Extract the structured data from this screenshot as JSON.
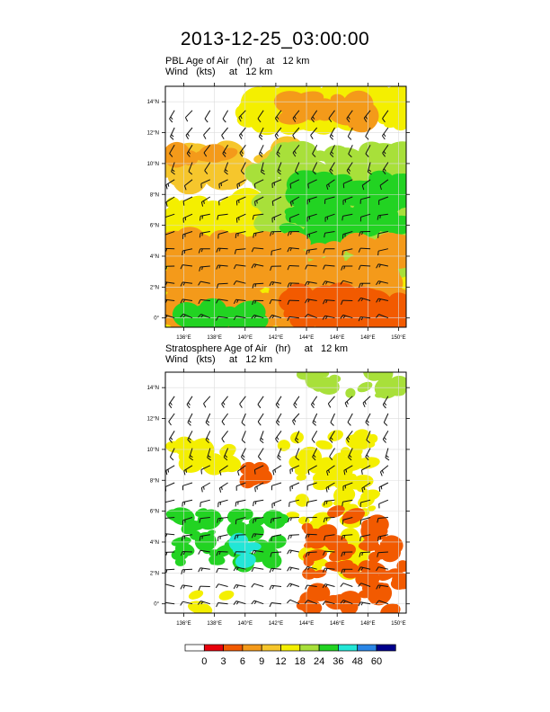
{
  "title": "2013-12-25_03:00:00",
  "chart_data": [
    {
      "type": "heatmap",
      "title": "PBL Age of Air   (hr)     at   12 km",
      "subtitle": "Wind   (kts)     at   12 km",
      "x_ticks": [
        "136°E",
        "138°E",
        "140°E",
        "142°E",
        "144°E",
        "146°E",
        "148°E",
        "150°E"
      ],
      "y_ticks": [
        "0°",
        "2°N",
        "4°N",
        "6°N",
        "8°N",
        "10°N",
        "12°N",
        "14°N"
      ],
      "xlim": [
        134.8,
        150.5
      ],
      "ylim": [
        -0.6,
        15.0
      ],
      "grid": true,
      "wind_barbs": true,
      "regions": [
        {
          "level": 9,
          "lon": [
            135.0,
            143.0
          ],
          "lat": [
            9.0,
            11.0
          ]
        },
        {
          "level": 6,
          "lon": [
            135.0,
            139.0
          ],
          "lat": [
            10.2,
            10.7
          ]
        },
        {
          "level": 12,
          "lon": [
            140.0,
            150.3
          ],
          "lat": [
            12.5,
            14.9
          ]
        },
        {
          "level": 6,
          "lon": [
            142.5,
            148.0
          ],
          "lat": [
            13.0,
            14.2
          ]
        },
        {
          "level": 12,
          "lon": [
            135.0,
            150.3
          ],
          "lat": [
            -0.6,
            7.5
          ]
        },
        {
          "level": 18,
          "lon": [
            141.0,
            150.3
          ],
          "lat": [
            3.0,
            11.0
          ]
        },
        {
          "level": 24,
          "lon": [
            143.0,
            150.3
          ],
          "lat": [
            5.5,
            9.0
          ]
        },
        {
          "level": 6,
          "lon": [
            135.0,
            150.3
          ],
          "lat": [
            -0.6,
            5.0
          ]
        },
        {
          "level": 3,
          "lon": [
            143.0,
            150.3
          ],
          "lat": [
            -0.6,
            1.5
          ]
        },
        {
          "level": 24,
          "lon": [
            136.0,
            141.0
          ],
          "lat": [
            -0.5,
            0.6
          ]
        }
      ]
    },
    {
      "type": "heatmap",
      "title": "Stratosphere Age of Air   (hr)     at   12 km",
      "subtitle": "Wind   (kts)     at   12 km",
      "x_ticks": [
        "136°E",
        "138°E",
        "140°E",
        "142°E",
        "144°E",
        "146°E",
        "148°E",
        "150°E"
      ],
      "y_ticks": [
        "0°",
        "2°N",
        "4°N",
        "6°N",
        "8°N",
        "10°N",
        "12°N",
        "14°N"
      ],
      "xlim": [
        134.8,
        150.5
      ],
      "ylim": [
        -0.6,
        15.0
      ],
      "grid": true,
      "wind_barbs": true,
      "regions": [
        {
          "level": 12,
          "lon": [
            135.0,
            140.0
          ],
          "lat": [
            8.5,
            10.5
          ]
        },
        {
          "level": 18,
          "lon": [
            144.0,
            150.3
          ],
          "lat": [
            13.5,
            15.0
          ]
        },
        {
          "level": 12,
          "lon": [
            142.5,
            148.5
          ],
          "lat": [
            5.0,
            11.0
          ]
        },
        {
          "level": 24,
          "lon": [
            135.0,
            142.5
          ],
          "lat": [
            2.5,
            6.0
          ]
        },
        {
          "level": 36,
          "lon": [
            139.5,
            140.5
          ],
          "lat": [
            2.5,
            4.0
          ]
        },
        {
          "level": 12,
          "lon": [
            144.0,
            148.0
          ],
          "lat": [
            1.5,
            4.5
          ]
        },
        {
          "level": 3,
          "lon": [
            144.0,
            150.3
          ],
          "lat": [
            -0.5,
            6.0
          ]
        },
        {
          "level": 3,
          "lon": [
            140.0,
            141.0
          ],
          "lat": [
            7.8,
            8.8
          ]
        },
        {
          "level": 12,
          "lon": [
            136.0,
            139.0
          ],
          "lat": [
            -0.5,
            0.8
          ]
        }
      ]
    }
  ],
  "colorbar": {
    "labels": [
      "0",
      "3",
      "6",
      "9",
      "12",
      "18",
      "24",
      "36",
      "48",
      "60"
    ],
    "colors": [
      "#ffffff",
      "#e8000b",
      "#f25a00",
      "#f49a1a",
      "#f6c62c",
      "#f4ef00",
      "#a8e03a",
      "#22d322",
      "#22e6d6",
      "#2a86e6",
      "#00008c"
    ]
  }
}
